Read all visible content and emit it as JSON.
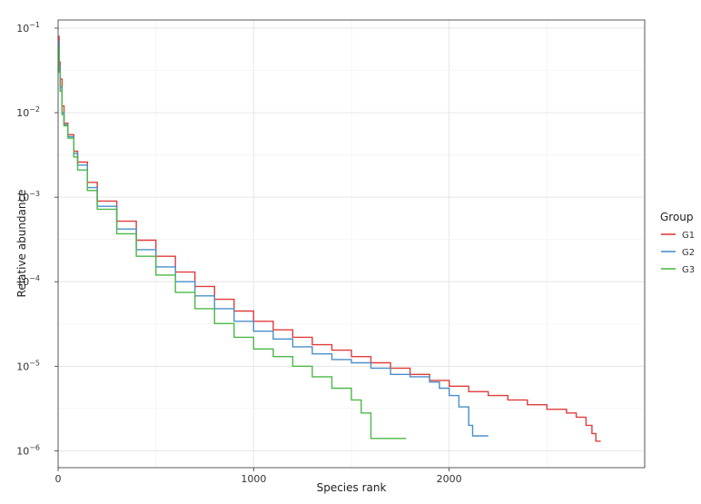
{
  "chart_data": {
    "type": "line",
    "xlabel": "Species rank",
    "ylabel": "Relative abundance",
    "xlim": [
      0,
      3000
    ],
    "ylim": [
      6.31e-07,
      0.125
    ],
    "yscale": "log",
    "grid": true,
    "x_ticks": [
      {
        "value": 0,
        "label": "0"
      },
      {
        "value": 1000,
        "label": "1000"
      },
      {
        "value": 2000,
        "label": "2000"
      }
    ],
    "y_ticks": [
      {
        "value": 0.1,
        "base": "10",
        "exp": "−1"
      },
      {
        "value": 0.01,
        "base": "10",
        "exp": "−2"
      },
      {
        "value": 0.001,
        "base": "10",
        "exp": "−3"
      },
      {
        "value": 0.0001,
        "base": "10",
        "exp": "−4"
      },
      {
        "value": 1e-05,
        "base": "10",
        "exp": "−5"
      },
      {
        "value": 1e-06,
        "base": "10",
        "exp": "−6"
      }
    ],
    "legend": {
      "title": "Group",
      "position": "right"
    },
    "series": [
      {
        "name": "G1",
        "color": "#e03c3c",
        "points": [
          [
            1,
            0.08
          ],
          [
            5,
            0.04
          ],
          [
            10,
            0.025
          ],
          [
            20,
            0.012
          ],
          [
            30,
            0.0075
          ],
          [
            50,
            0.0055
          ],
          [
            80,
            0.0035
          ],
          [
            100,
            0.0026
          ],
          [
            150,
            0.0015
          ],
          [
            200,
            0.0009
          ],
          [
            300,
            0.00052
          ],
          [
            400,
            0.00031
          ],
          [
            500,
            0.0002
          ],
          [
            600,
            0.00013
          ],
          [
            700,
            8.8e-05
          ],
          [
            800,
            6.2e-05
          ],
          [
            900,
            4.5e-05
          ],
          [
            1000,
            3.4e-05
          ],
          [
            1100,
            2.7e-05
          ],
          [
            1200,
            2.2e-05
          ],
          [
            1300,
            1.8e-05
          ],
          [
            1400,
            1.55e-05
          ],
          [
            1500,
            1.3e-05
          ],
          [
            1600,
            1.1e-05
          ],
          [
            1700,
            9.5e-06
          ],
          [
            1800,
            8e-06
          ],
          [
            1900,
            6.8e-06
          ],
          [
            2000,
            5.8e-06
          ],
          [
            2100,
            5e-06
          ],
          [
            2200,
            4.5e-06
          ],
          [
            2300,
            4e-06
          ],
          [
            2400,
            3.5e-06
          ],
          [
            2500,
            3.1e-06
          ],
          [
            2600,
            2.8e-06
          ],
          [
            2650,
            2.5e-06
          ],
          [
            2700,
            2e-06
          ],
          [
            2730,
            1.6e-06
          ],
          [
            2750,
            1.3e-06
          ],
          [
            2775,
            1.3e-06
          ]
        ]
      },
      {
        "name": "G2",
        "color": "#4a8fc9",
        "points": [
          [
            1,
            0.07
          ],
          [
            5,
            0.035
          ],
          [
            10,
            0.02
          ],
          [
            20,
            0.01
          ],
          [
            30,
            0.0072
          ],
          [
            50,
            0.0052
          ],
          [
            80,
            0.0033
          ],
          [
            100,
            0.0024
          ],
          [
            150,
            0.0013
          ],
          [
            200,
            0.00078
          ],
          [
            300,
            0.00042
          ],
          [
            400,
            0.00024
          ],
          [
            500,
            0.00015
          ],
          [
            600,
            0.0001
          ],
          [
            700,
            6.8e-05
          ],
          [
            800,
            4.8e-05
          ],
          [
            900,
            3.4e-05
          ],
          [
            1000,
            2.6e-05
          ],
          [
            1100,
            2.1e-05
          ],
          [
            1200,
            1.7e-05
          ],
          [
            1300,
            1.4e-05
          ],
          [
            1400,
            1.2e-05
          ],
          [
            1500,
            1.1e-05
          ],
          [
            1600,
            9.5e-06
          ],
          [
            1700,
            8e-06
          ],
          [
            1800,
            7.5e-06
          ],
          [
            1900,
            6.5e-06
          ],
          [
            1950,
            5.5e-06
          ],
          [
            2000,
            4.5e-06
          ],
          [
            2050,
            3.3e-06
          ],
          [
            2100,
            2e-06
          ],
          [
            2120,
            1.5e-06
          ],
          [
            2200,
            1.5e-06
          ]
        ]
      },
      {
        "name": "G3",
        "color": "#4db848",
        "points": [
          [
            1,
            0.06
          ],
          [
            5,
            0.03
          ],
          [
            10,
            0.018
          ],
          [
            20,
            0.0095
          ],
          [
            30,
            0.007
          ],
          [
            50,
            0.005
          ],
          [
            80,
            0.003
          ],
          [
            100,
            0.0021
          ],
          [
            150,
            0.0012
          ],
          [
            200,
            0.00072
          ],
          [
            300,
            0.00037
          ],
          [
            400,
            0.0002
          ],
          [
            500,
            0.00012
          ],
          [
            600,
            7.5e-05
          ],
          [
            700,
            4.8e-05
          ],
          [
            800,
            3.2e-05
          ],
          [
            900,
            2.2e-05
          ],
          [
            1000,
            1.6e-05
          ],
          [
            1100,
            1.3e-05
          ],
          [
            1200,
            1e-05
          ],
          [
            1300,
            7.5e-06
          ],
          [
            1400,
            5.5e-06
          ],
          [
            1500,
            4e-06
          ],
          [
            1550,
            2.8e-06
          ],
          [
            1600,
            1.4e-06
          ],
          [
            1780,
            1.4e-06
          ]
        ]
      }
    ]
  }
}
